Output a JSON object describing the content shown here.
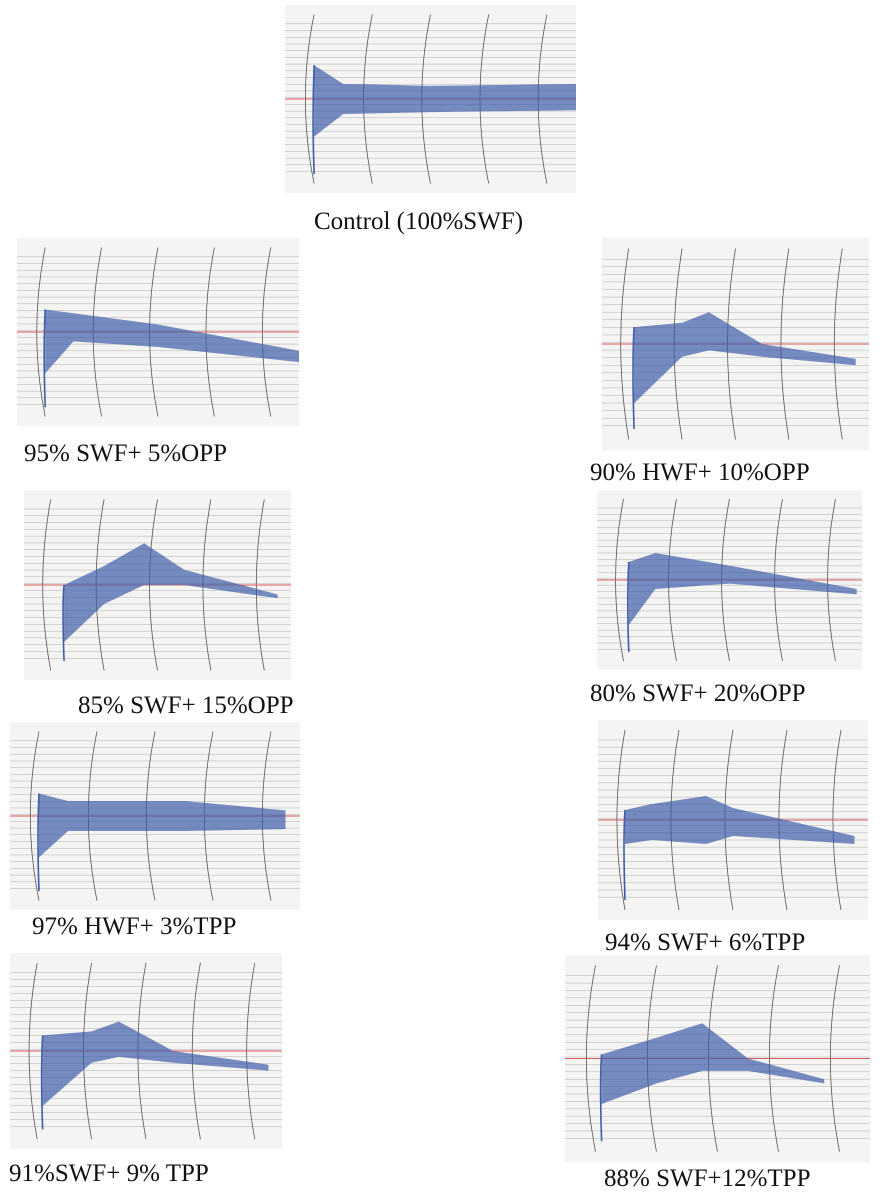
{
  "panels": [
    {
      "caption": "Control (100%SWF)",
      "curve": "plateau"
    },
    {
      "caption": "95% SWF+ 5%OPP",
      "curve": "decline"
    },
    {
      "caption": "90% HWF+ 10%OPP",
      "curve": "hump"
    },
    {
      "caption": "85% SWF+ 15%OPP",
      "curve": "peak"
    },
    {
      "caption": "80% SWF+ 20%OPP",
      "curve": "decline-early"
    },
    {
      "caption": "97% HWF+ 3%TPP",
      "curve": "plateau-dark"
    },
    {
      "caption": "94% SWF+ 6%TPP",
      "curve": "bulge"
    },
    {
      "caption": "91%SWF+ 9% TPP",
      "curve": "hump"
    },
    {
      "caption": "88% SWF+12%TPP",
      "curve": "peak-long"
    }
  ],
  "colors": {
    "curve": "#3e5da8",
    "redline": "#d85a5a",
    "grid": "#9aa0a6",
    "paper": "#f4f4f2"
  }
}
